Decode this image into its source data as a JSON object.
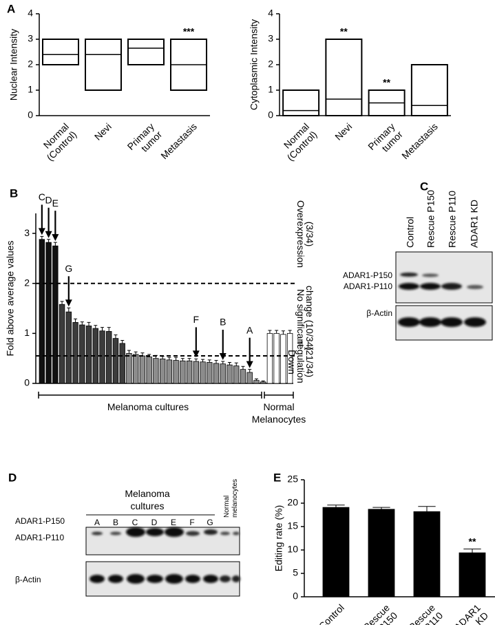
{
  "chart_data": [
    {
      "type": "box",
      "panel_label": "A",
      "ylabel": "Nuclear Intensity",
      "categories": [
        [
          "Normal",
          "(Control)"
        ],
        [
          "Nevi"
        ],
        [
          "Primary",
          "tumor"
        ],
        [
          "Metastasis"
        ]
      ],
      "boxes": [
        {
          "low": 2,
          "median": 2.4,
          "high": 3
        },
        {
          "low": 1,
          "median": 2.4,
          "high": 3
        },
        {
          "low": 2,
          "median": 2.65,
          "high": 3
        },
        {
          "low": 1,
          "median": 2,
          "high": 3
        }
      ],
      "annotations": [
        null,
        null,
        null,
        "***"
      ],
      "ylim": [
        0,
        4
      ],
      "yticks": [
        0,
        1,
        2,
        3,
        4
      ],
      "color": "#000000"
    },
    {
      "type": "box",
      "ylabel": "Cytoplasmic Intensity",
      "categories": [
        [
          "Normal",
          "(Control)"
        ],
        [
          "Nevi"
        ],
        [
          "Primary",
          "tumor"
        ],
        [
          "Metastasis"
        ]
      ],
      "boxes": [
        {
          "low": 0,
          "median": 0.2,
          "high": 1
        },
        {
          "low": 0,
          "median": 0.65,
          "high": 3
        },
        {
          "low": 0,
          "median": 0.5,
          "high": 1
        },
        {
          "low": 0,
          "median": 0.4,
          "high": 2
        }
      ],
      "annotations": [
        null,
        "**",
        "**",
        null
      ],
      "ylim": [
        0,
        4
      ],
      "yticks": [
        0,
        1,
        2,
        3,
        4
      ],
      "color": "#000000"
    },
    {
      "type": "bar",
      "panel_label": "B",
      "ylabel": "Fold above average values",
      "categories": [
        "C",
        "D",
        "E",
        null,
        "G",
        null,
        null,
        null,
        null,
        null,
        null,
        null,
        null,
        null,
        null,
        null,
        null,
        null,
        null,
        null,
        null,
        null,
        null,
        "F",
        null,
        null,
        null,
        "B",
        null,
        null,
        null,
        "A",
        null,
        null,
        null,
        null,
        null,
        null
      ],
      "values": [
        2.88,
        2.82,
        2.75,
        1.58,
        1.43,
        1.22,
        1.17,
        1.15,
        1.1,
        1.05,
        1.04,
        0.9,
        0.8,
        0.6,
        0.58,
        0.55,
        0.53,
        0.5,
        0.49,
        0.47,
        0.46,
        0.45,
        0.45,
        0.44,
        0.43,
        0.42,
        0.4,
        0.39,
        0.37,
        0.35,
        0.28,
        0.22,
        0.06,
        0.03,
        1.0,
        1.0,
        0.98,
        1.0
      ],
      "errors": [
        0.06,
        0.06,
        0.07,
        0.06,
        0.08,
        0.07,
        0.06,
        0.07,
        0.06,
        0.07,
        0.08,
        0.07,
        0.06,
        0.06,
        0.05,
        0.06,
        0.05,
        0.06,
        0.05,
        0.05,
        0.06,
        0.05,
        0.05,
        0.05,
        0.05,
        0.05,
        0.06,
        0.05,
        0.05,
        0.06,
        0.06,
        0.06,
        0.03,
        0.02,
        0.06,
        0.06,
        0.07,
        0.06
      ],
      "colors": [
        "#111111",
        "#111111",
        "#111111",
        "#3c3c3c",
        "#3c3c3c",
        "#3c3c3c",
        "#3c3c3c",
        "#3c3c3c",
        "#3c3c3c",
        "#3c3c3c",
        "#3c3c3c",
        "#3c3c3c",
        "#3c3c3c",
        "#8c8c8c",
        "#8c8c8c",
        "#8c8c8c",
        "#8c8c8c",
        "#8c8c8c",
        "#8c8c8c",
        "#8c8c8c",
        "#8c8c8c",
        "#8c8c8c",
        "#8c8c8c",
        "#8c8c8c",
        "#8c8c8c",
        "#8c8c8c",
        "#8c8c8c",
        "#8c8c8c",
        "#8c8c8c",
        "#8c8c8c",
        "#8c8c8c",
        "#8c8c8c",
        "#8c8c8c",
        "#8c8c8c",
        "#ffffff",
        "#ffffff",
        "#ffffff",
        "#ffffff"
      ],
      "reference_lines": [
        2,
        0.55
      ],
      "groups": [
        [
          "Overexpression",
          "(3/34)"
        ],
        [
          "No significant",
          "change (10/34)"
        ],
        [
          "Down",
          "regulation",
          "(21/34)"
        ]
      ],
      "brackets": [
        [
          "Melanoma cultures"
        ],
        [
          "Normal",
          "Melanocytes"
        ]
      ],
      "ylim": [
        0,
        3.4
      ],
      "yticks": [
        0,
        1,
        2,
        3
      ]
    },
    {
      "type": "bar",
      "panel_label": "E",
      "ylabel": "Editing rate (%)",
      "categories": [
        [
          "Control"
        ],
        [
          "Rescue",
          "P150"
        ],
        [
          "Rescue",
          "P110"
        ],
        [
          "ADAR1",
          "KD"
        ]
      ],
      "values": [
        19.1,
        18.7,
        18.2,
        9.4
      ],
      "errors": [
        0.5,
        0.4,
        1.1,
        0.8
      ],
      "colors": [
        "#000000",
        "#000000",
        "#000000",
        "#000000"
      ],
      "annotations": [
        null,
        null,
        null,
        "**"
      ],
      "ylim": [
        0,
        25
      ],
      "yticks": [
        0,
        5,
        10,
        15,
        20,
        25
      ]
    }
  ],
  "blots": [
    {
      "panel_label": "C",
      "lanes": [
        "Control",
        "Rescue P150",
        "Rescue P110",
        "ADAR1 KD"
      ],
      "bands": [
        "ADAR1-P150",
        "ADAR1-P110",
        "β-Actin"
      ]
    },
    {
      "panel_label": "D",
      "title": [
        "Melanoma",
        "cultures"
      ],
      "lanes": [
        "A",
        "B",
        "C",
        "D",
        "E",
        "F",
        "G"
      ],
      "reference_lane": [
        "Normal",
        "melanocytes"
      ],
      "bands": [
        "ADAR1-P150",
        "ADAR1-P110",
        "β-Actin"
      ]
    }
  ]
}
